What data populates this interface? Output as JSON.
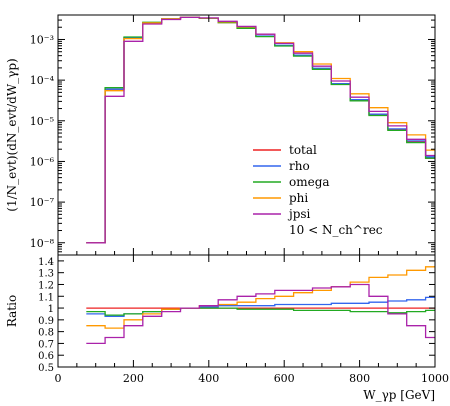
{
  "chart_data": {
    "type": "line",
    "upper_panel": {
      "ylabel": "(1/N_evt)(dN_evt/dW_γp)",
      "yscale": "log",
      "ylim": [
        5e-09,
        0.004
      ],
      "y_tick_labels": [
        "10⁻³",
        "10⁻⁴",
        "10⁻⁵",
        "10⁻⁶",
        "10⁻⁷",
        "10⁻⁸"
      ],
      "y_ticks": [
        0.001,
        0.0001,
        1e-05,
        1e-06,
        1e-07,
        1e-08
      ]
    },
    "lower_panel": {
      "ylabel": "Ratio",
      "ylim": [
        0.5,
        1.45
      ],
      "y_ticks": [
        0.5,
        0.6,
        0.7,
        0.8,
        0.9,
        1,
        1.1,
        1.2,
        1.3,
        1.4
      ],
      "y_tick_labels": [
        "0.5",
        "0.6",
        "0.7",
        "0.8",
        "0.9",
        "1",
        "1.1",
        "1.2",
        "1.3",
        "1.4"
      ]
    },
    "xlabel": "W_γp [GeV]",
    "xlim": [
      0,
      1000
    ],
    "x_ticks": [
      0,
      200,
      400,
      600,
      800,
      1000
    ],
    "x_tick_labels": [
      "0",
      "200",
      "400",
      "600",
      "800",
      "1000"
    ],
    "grid": false,
    "legend_placement": "lower-right",
    "legend_note": "10 < N_ch^rec",
    "x": [
      100,
      150,
      200,
      250,
      300,
      350,
      400,
      450,
      500,
      550,
      600,
      650,
      700,
      750,
      800,
      850,
      900,
      950,
      1000
    ],
    "series": [
      {
        "name": "total",
        "color": "#ee2222",
        "values": [
          1e-08,
          6e-05,
          0.0011,
          0.0026,
          0.0032,
          0.0035,
          0.0033,
          0.0026,
          0.0019,
          0.0012,
          0.0007,
          0.0004,
          0.00019,
          8e-05,
          3.2e-05,
          1.4e-05,
          6e-06,
          3e-06,
          1.2e-06
        ],
        "ratio": [
          1,
          1,
          1,
          1,
          1,
          1,
          1,
          1,
          1,
          1,
          1,
          1,
          1,
          1,
          1,
          1,
          1,
          1,
          1
        ]
      },
      {
        "name": "rho",
        "color": "#3366ee",
        "values": [
          1e-08,
          6e-05,
          0.00108,
          0.0026,
          0.0032,
          0.0035,
          0.0033,
          0.00265,
          0.00195,
          0.00122,
          0.00072,
          0.00041,
          0.000195,
          8.2e-05,
          3.3e-05,
          1.45e-05,
          6.3e-06,
          3.2e-06,
          1.3e-06
        ],
        "ratio": [
          0.95,
          0.93,
          0.95,
          0.97,
          0.99,
          1.0,
          1.01,
          1.02,
          1.02,
          1.02,
          1.03,
          1.03,
          1.03,
          1.04,
          1.04,
          1.05,
          1.06,
          1.07,
          1.09
        ]
      },
      {
        "name": "omega",
        "color": "#22aa22",
        "values": [
          1e-08,
          6.5e-05,
          0.00115,
          0.00265,
          0.0032,
          0.0035,
          0.0033,
          0.0026,
          0.00188,
          0.00118,
          0.00069,
          0.00039,
          0.000185,
          7.8e-05,
          3.1e-05,
          1.35e-05,
          5.8e-06,
          2.9e-06,
          1.2e-06
        ],
        "ratio": [
          0.97,
          0.94,
          0.95,
          0.97,
          0.99,
          1.0,
          1.0,
          1.0,
          0.99,
          0.99,
          0.99,
          0.98,
          0.98,
          0.98,
          0.97,
          0.97,
          0.96,
          0.97,
          0.98
        ]
      },
      {
        "name": "phi",
        "color": "#ff9900",
        "values": [
          1e-08,
          5.5e-05,
          0.00105,
          0.00255,
          0.0032,
          0.0035,
          0.00335,
          0.0027,
          0.00205,
          0.00135,
          0.00083,
          0.0005,
          0.00025,
          0.00011,
          4.6e-05,
          2.1e-05,
          9e-06,
          4.5e-06,
          1.9e-06
        ],
        "ratio": [
          0.85,
          0.83,
          0.9,
          0.95,
          0.99,
          1.0,
          1.02,
          1.03,
          1.05,
          1.08,
          1.1,
          1.13,
          1.15,
          1.18,
          1.22,
          1.26,
          1.28,
          1.32,
          1.35
        ]
      },
      {
        "name": "jpsi",
        "color": "#aa22aa",
        "values": [
          1e-08,
          4e-05,
          0.0009,
          0.0024,
          0.0031,
          0.0035,
          0.0034,
          0.0028,
          0.0021,
          0.00135,
          0.0008,
          0.00046,
          0.00022,
          9.5e-05,
          3.8e-05,
          1.7e-05,
          7.5e-06,
          3.5e-06,
          1.4e-06
        ],
        "ratio": [
          0.7,
          0.75,
          0.85,
          0.93,
          0.97,
          1.0,
          1.02,
          1.07,
          1.1,
          1.12,
          1.15,
          1.15,
          1.17,
          1.18,
          1.2,
          1.1,
          0.95,
          0.85,
          0.75
        ]
      }
    ]
  }
}
